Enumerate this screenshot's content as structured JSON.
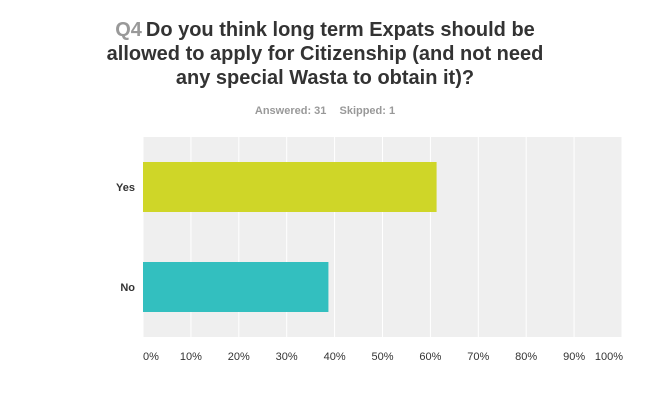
{
  "question": {
    "number": "Q4",
    "text": "Do you think long term Expats should be allowed to apply for Citizenship (and not need any special Wasta to obtain it)?"
  },
  "stats": {
    "answered": "Answered: 31",
    "skipped": "Skipped: 1"
  },
  "colors": {
    "plot_background": "#efefef",
    "gridline": "#ffffff"
  },
  "chart_data": {
    "type": "bar",
    "orientation": "horizontal",
    "categories": [
      "Yes",
      "No"
    ],
    "values": [
      61.29,
      38.71
    ],
    "value_unit": "%",
    "bar_colors": [
      "#cfd628",
      "#33bfbf"
    ],
    "xlim": [
      0,
      100
    ],
    "xticks": [
      "0%",
      "10%",
      "20%",
      "30%",
      "40%",
      "50%",
      "60%",
      "70%",
      "80%",
      "90%",
      "100%"
    ],
    "grid": true,
    "legend": "none"
  }
}
